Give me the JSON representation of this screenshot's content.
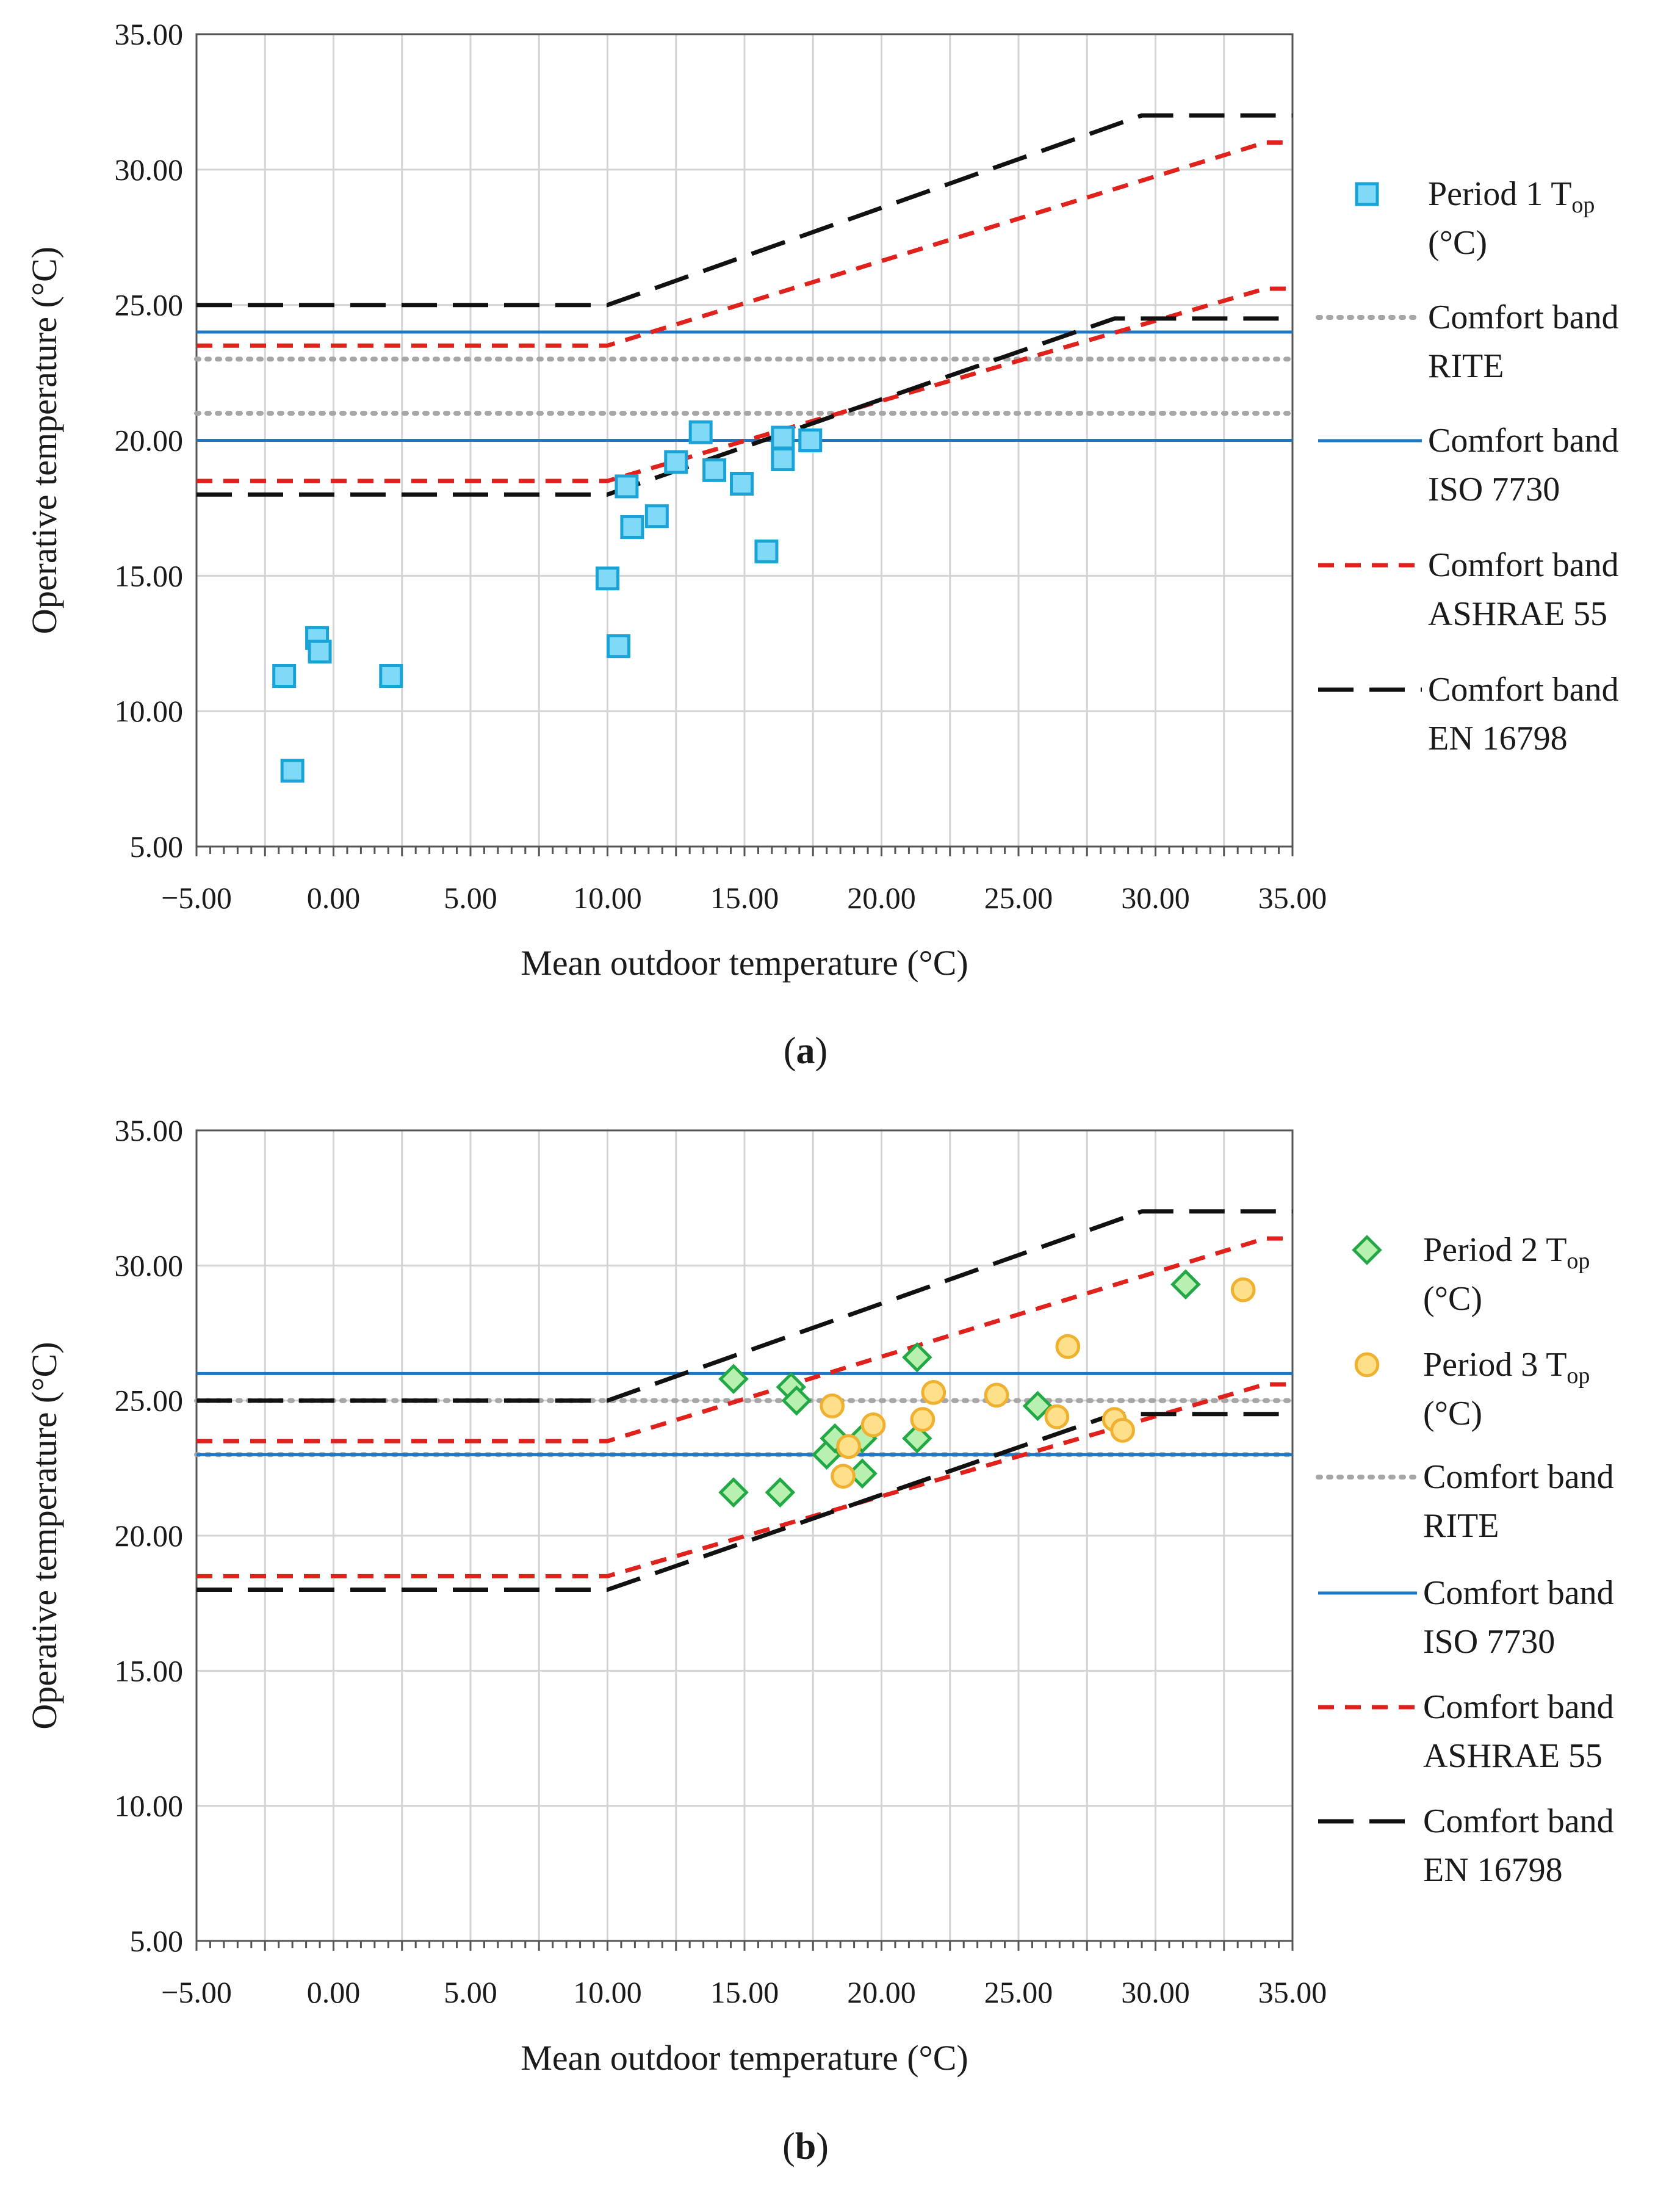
{
  "chart_data": [
    {
      "type": "scatter",
      "panel_label": {
        "open": "(",
        "letter": "a",
        "close": ")"
      },
      "xlabel": "Mean outdoor temperature (°C)",
      "ylabel": "Operative temperature (°C)",
      "xlim": [
        -5,
        35
      ],
      "ylim": [
        5,
        35
      ],
      "x_ticks": [
        "−5.00",
        "0.00",
        "5.00",
        "10.00",
        "15.00",
        "20.00",
        "25.00",
        "30.00",
        "35.00"
      ],
      "y_ticks": [
        "5.00",
        "10.00",
        "15.00",
        "20.00",
        "25.00",
        "30.00",
        "35.00"
      ],
      "grid": true,
      "legend_position": "right",
      "scatter_series": [
        {
          "name": "Period 1 T_op (°C)",
          "legend_lines": [
            "Period 1 T",
            "op",
            "(°C)"
          ],
          "marker": "square",
          "fill": "#7fd9f7",
          "stroke": "#1aa3d6",
          "points": [
            [
              -1.8,
              11.3
            ],
            [
              -1.5,
              7.8
            ],
            [
              -0.6,
              12.7
            ],
            [
              -0.5,
              12.2
            ],
            [
              2.1,
              11.3
            ],
            [
              10.0,
              14.9
            ],
            [
              10.4,
              12.4
            ],
            [
              10.7,
              18.3
            ],
            [
              10.9,
              16.8
            ],
            [
              11.8,
              17.2
            ],
            [
              12.5,
              19.2
            ],
            [
              13.4,
              20.3
            ],
            [
              13.9,
              18.9
            ],
            [
              14.9,
              18.4
            ],
            [
              15.8,
              15.9
            ],
            [
              16.4,
              20.1
            ],
            [
              16.4,
              19.3
            ],
            [
              17.4,
              20.0
            ]
          ]
        }
      ],
      "bands": [
        {
          "name": "Comfort band RITE",
          "legend_lines": [
            "Comfort band",
            "RITE"
          ],
          "color": "#a6a6a6",
          "style": "dotted",
          "lines": [
            [
              [
                -5,
                23
              ],
              [
                35,
                23
              ]
            ],
            [
              [
                -5,
                21
              ],
              [
                35,
                21
              ]
            ]
          ]
        },
        {
          "name": "Comfort band ISO 7730",
          "legend_lines": [
            "Comfort band",
            "ISO 7730"
          ],
          "color": "#1f77c4",
          "style": "solid",
          "lines": [
            [
              [
                -5,
                24
              ],
              [
                35,
                24
              ]
            ],
            [
              [
                -5,
                20
              ],
              [
                35,
                20
              ]
            ]
          ]
        },
        {
          "name": "Comfort band ASHRAE 55",
          "legend_lines": [
            "Comfort band",
            "ASHRAE 55"
          ],
          "color": "#e0211c",
          "style": "dashed-short",
          "lines": [
            [
              [
                -5,
                23.5
              ],
              [
                10,
                23.5
              ],
              [
                34,
                31
              ],
              [
                35,
                31
              ]
            ],
            [
              [
                -5,
                18.5
              ],
              [
                10,
                18.5
              ],
              [
                34,
                25.6
              ],
              [
                35,
                25.6
              ]
            ]
          ]
        },
        {
          "name": "Comfort band EN 16798",
          "legend_lines": [
            "Comfort band",
            "EN 16798"
          ],
          "color": "#111111",
          "style": "dashed-long",
          "lines": [
            [
              [
                -5,
                25
              ],
              [
                10,
                25
              ],
              [
                29.5,
                32
              ],
              [
                35,
                32
              ]
            ],
            [
              [
                -5,
                18
              ],
              [
                10,
                18
              ],
              [
                28.5,
                24.5
              ],
              [
                35,
                24.5
              ]
            ]
          ]
        }
      ]
    },
    {
      "type": "scatter",
      "panel_label": {
        "open": "(",
        "letter": "b",
        "close": ")"
      },
      "xlabel": "Mean outdoor temperature (°C)",
      "ylabel": "Operative temperature (°C)",
      "xlim": [
        -5,
        35
      ],
      "ylim": [
        5,
        35
      ],
      "x_ticks": [
        "−5.00",
        "0.00",
        "5.00",
        "10.00",
        "15.00",
        "20.00",
        "25.00",
        "30.00",
        "35.00"
      ],
      "y_ticks": [
        "5.00",
        "10.00",
        "15.00",
        "20.00",
        "25.00",
        "30.00",
        "35.00"
      ],
      "grid": true,
      "legend_position": "right",
      "scatter_series": [
        {
          "name": "Period 2 T_op (°C)",
          "legend_lines": [
            "Period 2 T",
            "op",
            "(°C)"
          ],
          "marker": "diamond",
          "fill": "#b8f0b0",
          "stroke": "#22a845",
          "points": [
            [
              14.6,
              25.8
            ],
            [
              14.6,
              21.6
            ],
            [
              16.3,
              21.6
            ],
            [
              16.7,
              25.5
            ],
            [
              16.9,
              25.0
            ],
            [
              18.0,
              23.0
            ],
            [
              18.3,
              23.6
            ],
            [
              19.3,
              23.6
            ],
            [
              19.3,
              22.3
            ],
            [
              21.3,
              26.6
            ],
            [
              21.3,
              23.6
            ],
            [
              25.7,
              24.8
            ],
            [
              31.1,
              29.3
            ]
          ]
        },
        {
          "name": "Period 3 T_op (°C)",
          "legend_lines": [
            "Period 3 T",
            "op",
            "(°C)"
          ],
          "marker": "circle",
          "fill": "#ffe08a",
          "stroke": "#f0b030",
          "points": [
            [
              18.2,
              24.8
            ],
            [
              18.6,
              22.2
            ],
            [
              18.8,
              23.3
            ],
            [
              19.7,
              24.1
            ],
            [
              21.5,
              24.3
            ],
            [
              21.9,
              25.3
            ],
            [
              24.2,
              25.2
            ],
            [
              26.4,
              24.4
            ],
            [
              26.8,
              27.0
            ],
            [
              28.5,
              24.3
            ],
            [
              28.8,
              23.9
            ],
            [
              33.2,
              29.1
            ]
          ]
        }
      ],
      "bands": [
        {
          "name": "Comfort band RITE",
          "legend_lines": [
            "Comfort band",
            "RITE"
          ],
          "color": "#a6a6a6",
          "style": "dotted",
          "lines": [
            [
              [
                -5,
                25
              ],
              [
                35,
                25
              ]
            ],
            [
              [
                -5,
                23
              ],
              [
                35,
                23
              ]
            ]
          ]
        },
        {
          "name": "Comfort band ISO 7730",
          "legend_lines": [
            "Comfort band",
            "ISO 7730"
          ],
          "color": "#1f77c4",
          "style": "solid",
          "lines": [
            [
              [
                -5,
                26
              ],
              [
                35,
                26
              ]
            ],
            [
              [
                -5,
                23
              ],
              [
                35,
                23
              ]
            ]
          ]
        },
        {
          "name": "Comfort band ASHRAE 55",
          "legend_lines": [
            "Comfort band",
            "ASHRAE 55"
          ],
          "color": "#e0211c",
          "style": "dashed-short",
          "lines": [
            [
              [
                -5,
                23.5
              ],
              [
                10,
                23.5
              ],
              [
                34,
                31
              ],
              [
                35,
                31
              ]
            ],
            [
              [
                -5,
                18.5
              ],
              [
                10,
                18.5
              ],
              [
                34,
                25.6
              ],
              [
                35,
                25.6
              ]
            ]
          ]
        },
        {
          "name": "Comfort band EN 16798",
          "legend_lines": [
            "Comfort band",
            "EN 16798"
          ],
          "color": "#111111",
          "style": "dashed-long",
          "lines": [
            [
              [
                -5,
                25
              ],
              [
                10,
                25
              ],
              [
                29.5,
                32
              ],
              [
                35,
                32
              ]
            ],
            [
              [
                -5,
                18
              ],
              [
                10,
                18
              ],
              [
                28.5,
                24.5
              ],
              [
                35,
                24.5
              ]
            ]
          ]
        }
      ]
    }
  ]
}
